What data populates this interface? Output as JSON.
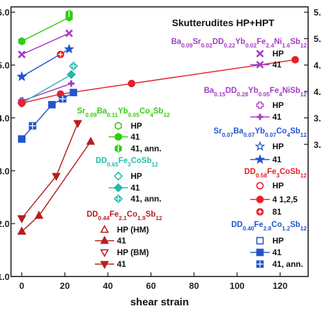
{
  "chart_data": {
    "type": "line",
    "title": "Skutterudites HP+HPT",
    "xlabel": "shear strain",
    "ylabel": "",
    "xlim": [
      -5,
      133
    ],
    "ylim": [
      1.0,
      6.1
    ],
    "x_ticks": [
      "0",
      "20",
      "40",
      "60",
      "80",
      "100",
      "120"
    ],
    "y_ticks_left": [
      "6.0",
      "5.0",
      "4.0",
      "3.0",
      "2.0",
      "1.0"
    ],
    "y_ticks_right": [
      "5.",
      "5.",
      "4.",
      "4.",
      "3.",
      "3."
    ],
    "grid": false,
    "legend_placement": "right",
    "groups": [
      {
        "formula": "Ba0.09Sr0.02DD0.22Yb0.02Fe2.4Ni1.6Sb12",
        "color": "#a23bc8",
        "series": [
          {
            "label": "HP",
            "marker": "x",
            "line": false,
            "points": [
              {
                "x": 0,
                "y": 5.2
              }
            ]
          },
          {
            "label": "41",
            "marker": "x",
            "line": true,
            "points": [
              {
                "x": 0,
                "y": 5.2
              },
              {
                "x": 22,
                "y": 5.6
              }
            ]
          }
        ]
      },
      {
        "formula": "Ba0.15DD0.28Yb0.05Fe4NiSb12",
        "color": "#a23bc8",
        "series": [
          {
            "label": "HP",
            "marker": "plus-open",
            "line": false,
            "points": [
              {
                "x": 0,
                "y": 4.32
              }
            ]
          },
          {
            "label": "41",
            "marker": "plus",
            "line": true,
            "points": [
              {
                "x": 0,
                "y": 4.32
              },
              {
                "x": 23,
                "y": 4.65
              }
            ]
          }
        ]
      },
      {
        "formula": "Sr0.09Ba0.11Yb0.05Co4Sb12",
        "color": "#33cc11",
        "series": [
          {
            "label": "HP",
            "marker": "hexagon-open",
            "line": false,
            "points": [
              {
                "x": 0,
                "y": 5.45
              }
            ]
          },
          {
            "label": "41",
            "marker": "hexagon",
            "line": true,
            "points": [
              {
                "x": 0,
                "y": 5.45
              },
              {
                "x": 22,
                "y": 5.9
              }
            ]
          },
          {
            "label": "41, ann.",
            "marker": "hexagon-half",
            "line": false,
            "points": [
              {
                "x": 22,
                "y": 5.97
              }
            ]
          }
        ]
      },
      {
        "formula": "Sr0.07Ba0.07Yb0.07Co4Sb12",
        "color": "#2255cc",
        "series": [
          {
            "label": "HP",
            "marker": "star-open",
            "line": false,
            "points": [
              {
                "x": 0,
                "y": 4.78
              }
            ]
          },
          {
            "label": "41",
            "marker": "star",
            "line": true,
            "points": [
              {
                "x": 0,
                "y": 4.78
              },
              {
                "x": 22,
                "y": 5.3
              }
            ]
          }
        ]
      },
      {
        "formula": "DD0.65Fe3CoSb12",
        "color": "#22bbaa",
        "series": [
          {
            "label": "HP",
            "marker": "diamond-open",
            "line": false,
            "points": [
              {
                "x": 0,
                "y": 4.28
              }
            ]
          },
          {
            "label": "41",
            "marker": "diamond",
            "line": true,
            "points": [
              {
                "x": 0,
                "y": 4.28
              },
              {
                "x": 23,
                "y": 4.82
              }
            ]
          },
          {
            "label": "41, ann.",
            "marker": "diamond-half",
            "line": false,
            "points": [
              {
                "x": 24,
                "y": 4.98
              }
            ]
          }
        ]
      },
      {
        "formula": "DD0.58Fe3CoSb12",
        "color": "#e8202a",
        "series": [
          {
            "label": "HP",
            "marker": "circle-open",
            "line": false,
            "points": [
              {
                "x": 0,
                "y": 4.28
              }
            ]
          },
          {
            "label": "4 1,2,5",
            "marker": "circle",
            "line": true,
            "points": [
              {
                "x": 0,
                "y": 4.28
              },
              {
                "x": 18,
                "y": 4.45
              },
              {
                "x": 51,
                "y": 4.65
              },
              {
                "x": 127,
                "y": 5.1
              }
            ]
          },
          {
            "label": "81",
            "marker": "circle-half",
            "line": false,
            "points": [
              {
                "x": 18,
                "y": 5.2
              }
            ]
          }
        ]
      },
      {
        "formula": "DD0.40Fe2.8Co1.2Sb12",
        "color": "#2255cc",
        "series": [
          {
            "label": "HP",
            "marker": "square-open",
            "line": false,
            "points": [
              {
                "x": 0,
                "y": 3.6
              }
            ]
          },
          {
            "label": "41",
            "marker": "square",
            "line": true,
            "points": [
              {
                "x": 0,
                "y": 3.6
              },
              {
                "x": 14,
                "y": 4.25
              },
              {
                "x": 24,
                "y": 4.48
              }
            ]
          },
          {
            "label": "41, ann.",
            "marker": "square-half",
            "line": false,
            "points": [
              {
                "x": 5,
                "y": 3.85
              },
              {
                "x": 19,
                "y": 4.36
              }
            ]
          }
        ]
      },
      {
        "formula": "DD0.44Fe2.1Co1.9Sb12",
        "color": "#b81e1e",
        "series": [
          {
            "label": "HP (HM)",
            "marker": "triangle-up-open",
            "line": false,
            "points": [
              {
                "x": 0,
                "y": 1.85
              }
            ]
          },
          {
            "label": "41",
            "marker": "triangle-up",
            "line": true,
            "points": [
              {
                "x": 0,
                "y": 1.85
              },
              {
                "x": 8,
                "y": 2.15
              },
              {
                "x": 32,
                "y": 3.55
              }
            ]
          },
          {
            "label": "HP (BM)",
            "marker": "triangle-down-open",
            "line": false,
            "points": [
              {
                "x": 0,
                "y": 2.1
              }
            ]
          },
          {
            "label": "41",
            "marker": "triangle-down",
            "line": true,
            "points": [
              {
                "x": 0,
                "y": 2.1
              },
              {
                "x": 16,
                "y": 2.9
              },
              {
                "x": 26,
                "y": 3.9
              }
            ]
          }
        ]
      }
    ]
  }
}
